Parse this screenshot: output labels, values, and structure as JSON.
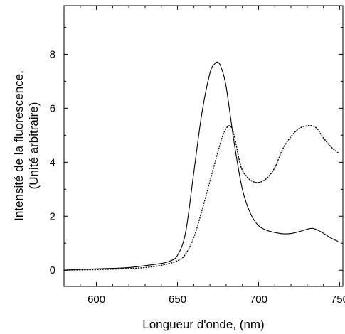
{
  "chart_data": {
    "type": "line",
    "xlabel": "Longueur d'onde, (nm)",
    "ylabel_lines": [
      "Intensité  de la fluorescence,",
      "(Unité arbitraire)"
    ],
    "xlim": [
      580,
      752
    ],
    "ylim": [
      -0.6,
      9.8
    ],
    "xticks": [
      600,
      650,
      700,
      750
    ],
    "yticks": [
      0,
      2,
      4,
      6,
      8
    ],
    "x_minor_step": 10,
    "y_minor_step": 1,
    "grid": false,
    "legend": "none",
    "series": [
      {
        "style": "solid",
        "color": "#000000",
        "x": [
          580,
          590,
          600,
          610,
          620,
          630,
          640,
          645,
          650,
          655,
          660,
          665,
          670,
          673,
          675,
          677,
          680,
          685,
          690,
          695,
          700,
          705,
          710,
          715,
          720,
          725,
          730,
          733,
          736,
          740,
          745,
          749
        ],
        "y": [
          0.0,
          0.03,
          0.05,
          0.07,
          0.1,
          0.17,
          0.25,
          0.33,
          0.55,
          1.4,
          3.6,
          5.8,
          7.3,
          7.65,
          7.7,
          7.5,
          6.8,
          4.7,
          3.0,
          2.1,
          1.65,
          1.48,
          1.4,
          1.35,
          1.36,
          1.43,
          1.52,
          1.55,
          1.5,
          1.37,
          1.18,
          1.07
        ]
      },
      {
        "style": "dotted",
        "color": "#000000",
        "x": [
          580,
          590,
          600,
          610,
          620,
          630,
          640,
          650,
          655,
          660,
          665,
          670,
          675,
          678,
          680,
          682,
          684,
          686,
          688,
          690,
          693,
          696,
          700,
          705,
          710,
          715,
          720,
          725,
          730,
          733,
          736,
          740,
          745,
          749
        ],
        "y": [
          0.0,
          0.01,
          0.02,
          0.04,
          0.06,
          0.1,
          0.18,
          0.35,
          0.6,
          1.2,
          2.2,
          3.3,
          4.4,
          5.0,
          5.25,
          5.35,
          5.2,
          4.7,
          4.1,
          3.7,
          3.45,
          3.3,
          3.25,
          3.4,
          3.8,
          4.5,
          4.95,
          5.25,
          5.35,
          5.35,
          5.25,
          4.9,
          4.55,
          4.35
        ]
      }
    ]
  }
}
